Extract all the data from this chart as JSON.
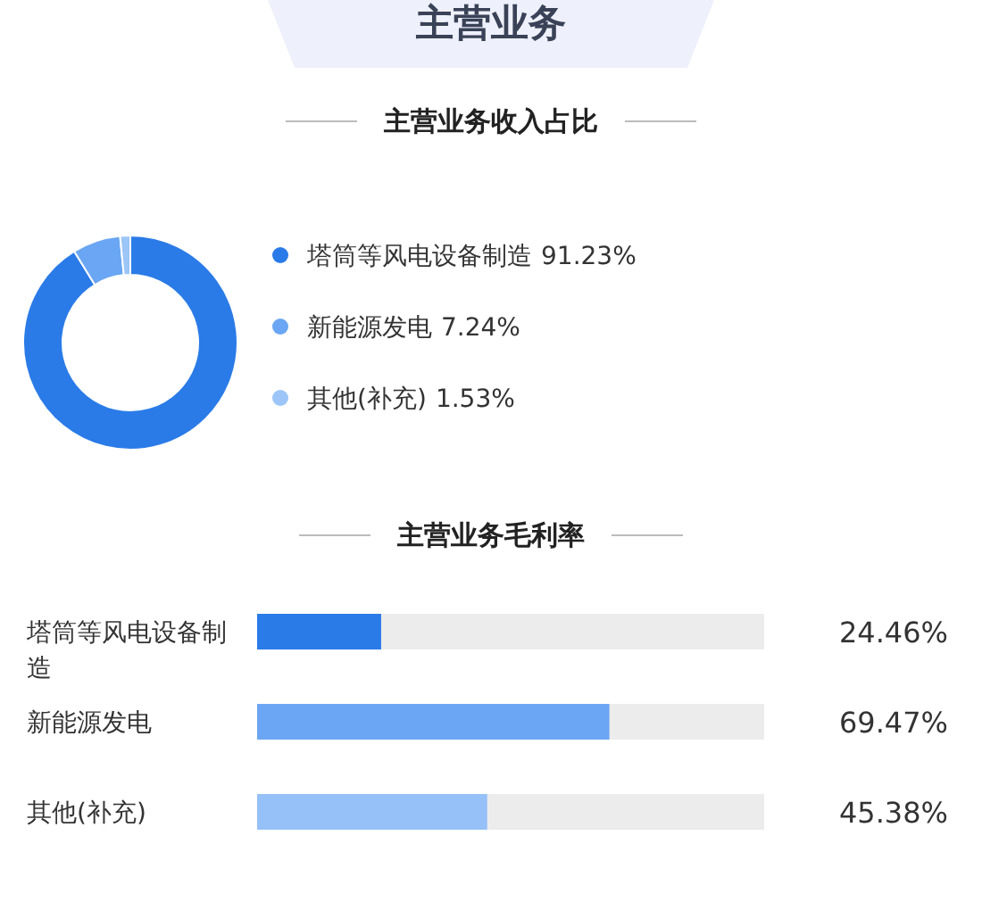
{
  "chart_data": [
    {
      "type": "donut",
      "title": "主营业务",
      "subtitle": "主营业务收入占比",
      "categories": [
        "塔筒等风电设备制造",
        "新能源发电",
        "其他(补充)"
      ],
      "values": [
        91.23,
        7.24,
        1.53
      ],
      "colors": [
        "#2a7be8",
        "#6aa6f3",
        "#9cc5f8"
      ],
      "legend": "right",
      "value_labels": [
        "91.23%",
        "7.24%",
        "1.53%"
      ]
    },
    {
      "type": "bar",
      "orientation": "horizontal",
      "title": "主营业务毛利率",
      "categories": [
        "塔筒等风电设备制造",
        "新能源发电",
        "其他(补充)"
      ],
      "values": [
        24.46,
        69.47,
        45.38
      ],
      "value_labels": [
        "24.46%",
        "69.47%",
        "45.38%"
      ],
      "colors": [
        "#2a7be8",
        "#6aa6f3",
        "#96c0f8"
      ],
      "xlim": [
        0,
        100
      ],
      "tick_labels": "y"
    }
  ]
}
